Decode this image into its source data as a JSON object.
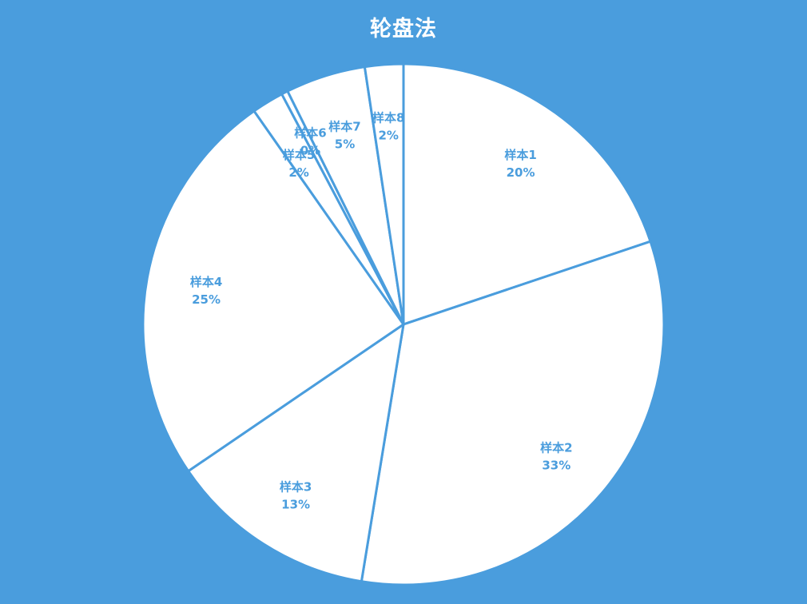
{
  "chart_data": {
    "type": "pie",
    "title": "轮盘法",
    "start_angle": "12 o'clock, clockwise",
    "slices": [
      {
        "label": "样本1",
        "percent_label": "20%",
        "value": 20
      },
      {
        "label": "样本2",
        "percent_label": "33%",
        "value": 33
      },
      {
        "label": "样本3",
        "percent_label": "13%",
        "value": 13
      },
      {
        "label": "样本4",
        "percent_label": "25%",
        "value": 25
      },
      {
        "label": "样本5",
        "percent_label": "2%",
        "value": 2
      },
      {
        "label": "样本6",
        "percent_label": "0%",
        "value": 0.4
      },
      {
        "label": "样本7",
        "percent_label": "5%",
        "value": 5
      },
      {
        "label": "样本8",
        "percent_label": "2%",
        "value": 2.4
      }
    ],
    "colors": {
      "background": "#4a9ddd",
      "slice_fill": "#ffffff",
      "slice_stroke": "#4a9ddd",
      "label_text": "#4a9ddd",
      "title_text": "#ffffff"
    }
  }
}
